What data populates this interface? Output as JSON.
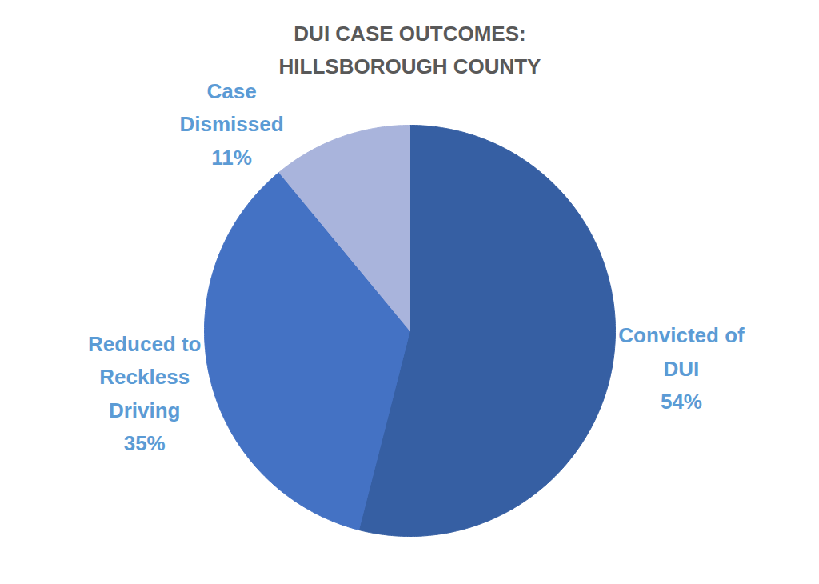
{
  "chart_data": {
    "type": "pie",
    "title": "DUI CASE OUTCOMES:\nHILLSBOROUGH COUNTY",
    "categories": [
      "Convicted of\nDUI",
      "Reduced to\nReckless\nDriving",
      "Case\nDismissed"
    ],
    "values": [
      54,
      35,
      11
    ],
    "value_labels": [
      "54%",
      "35%",
      "11%"
    ],
    "colors": [
      "#365FA3",
      "#4472C4",
      "#A9B4DC"
    ],
    "data_labels": true
  }
}
